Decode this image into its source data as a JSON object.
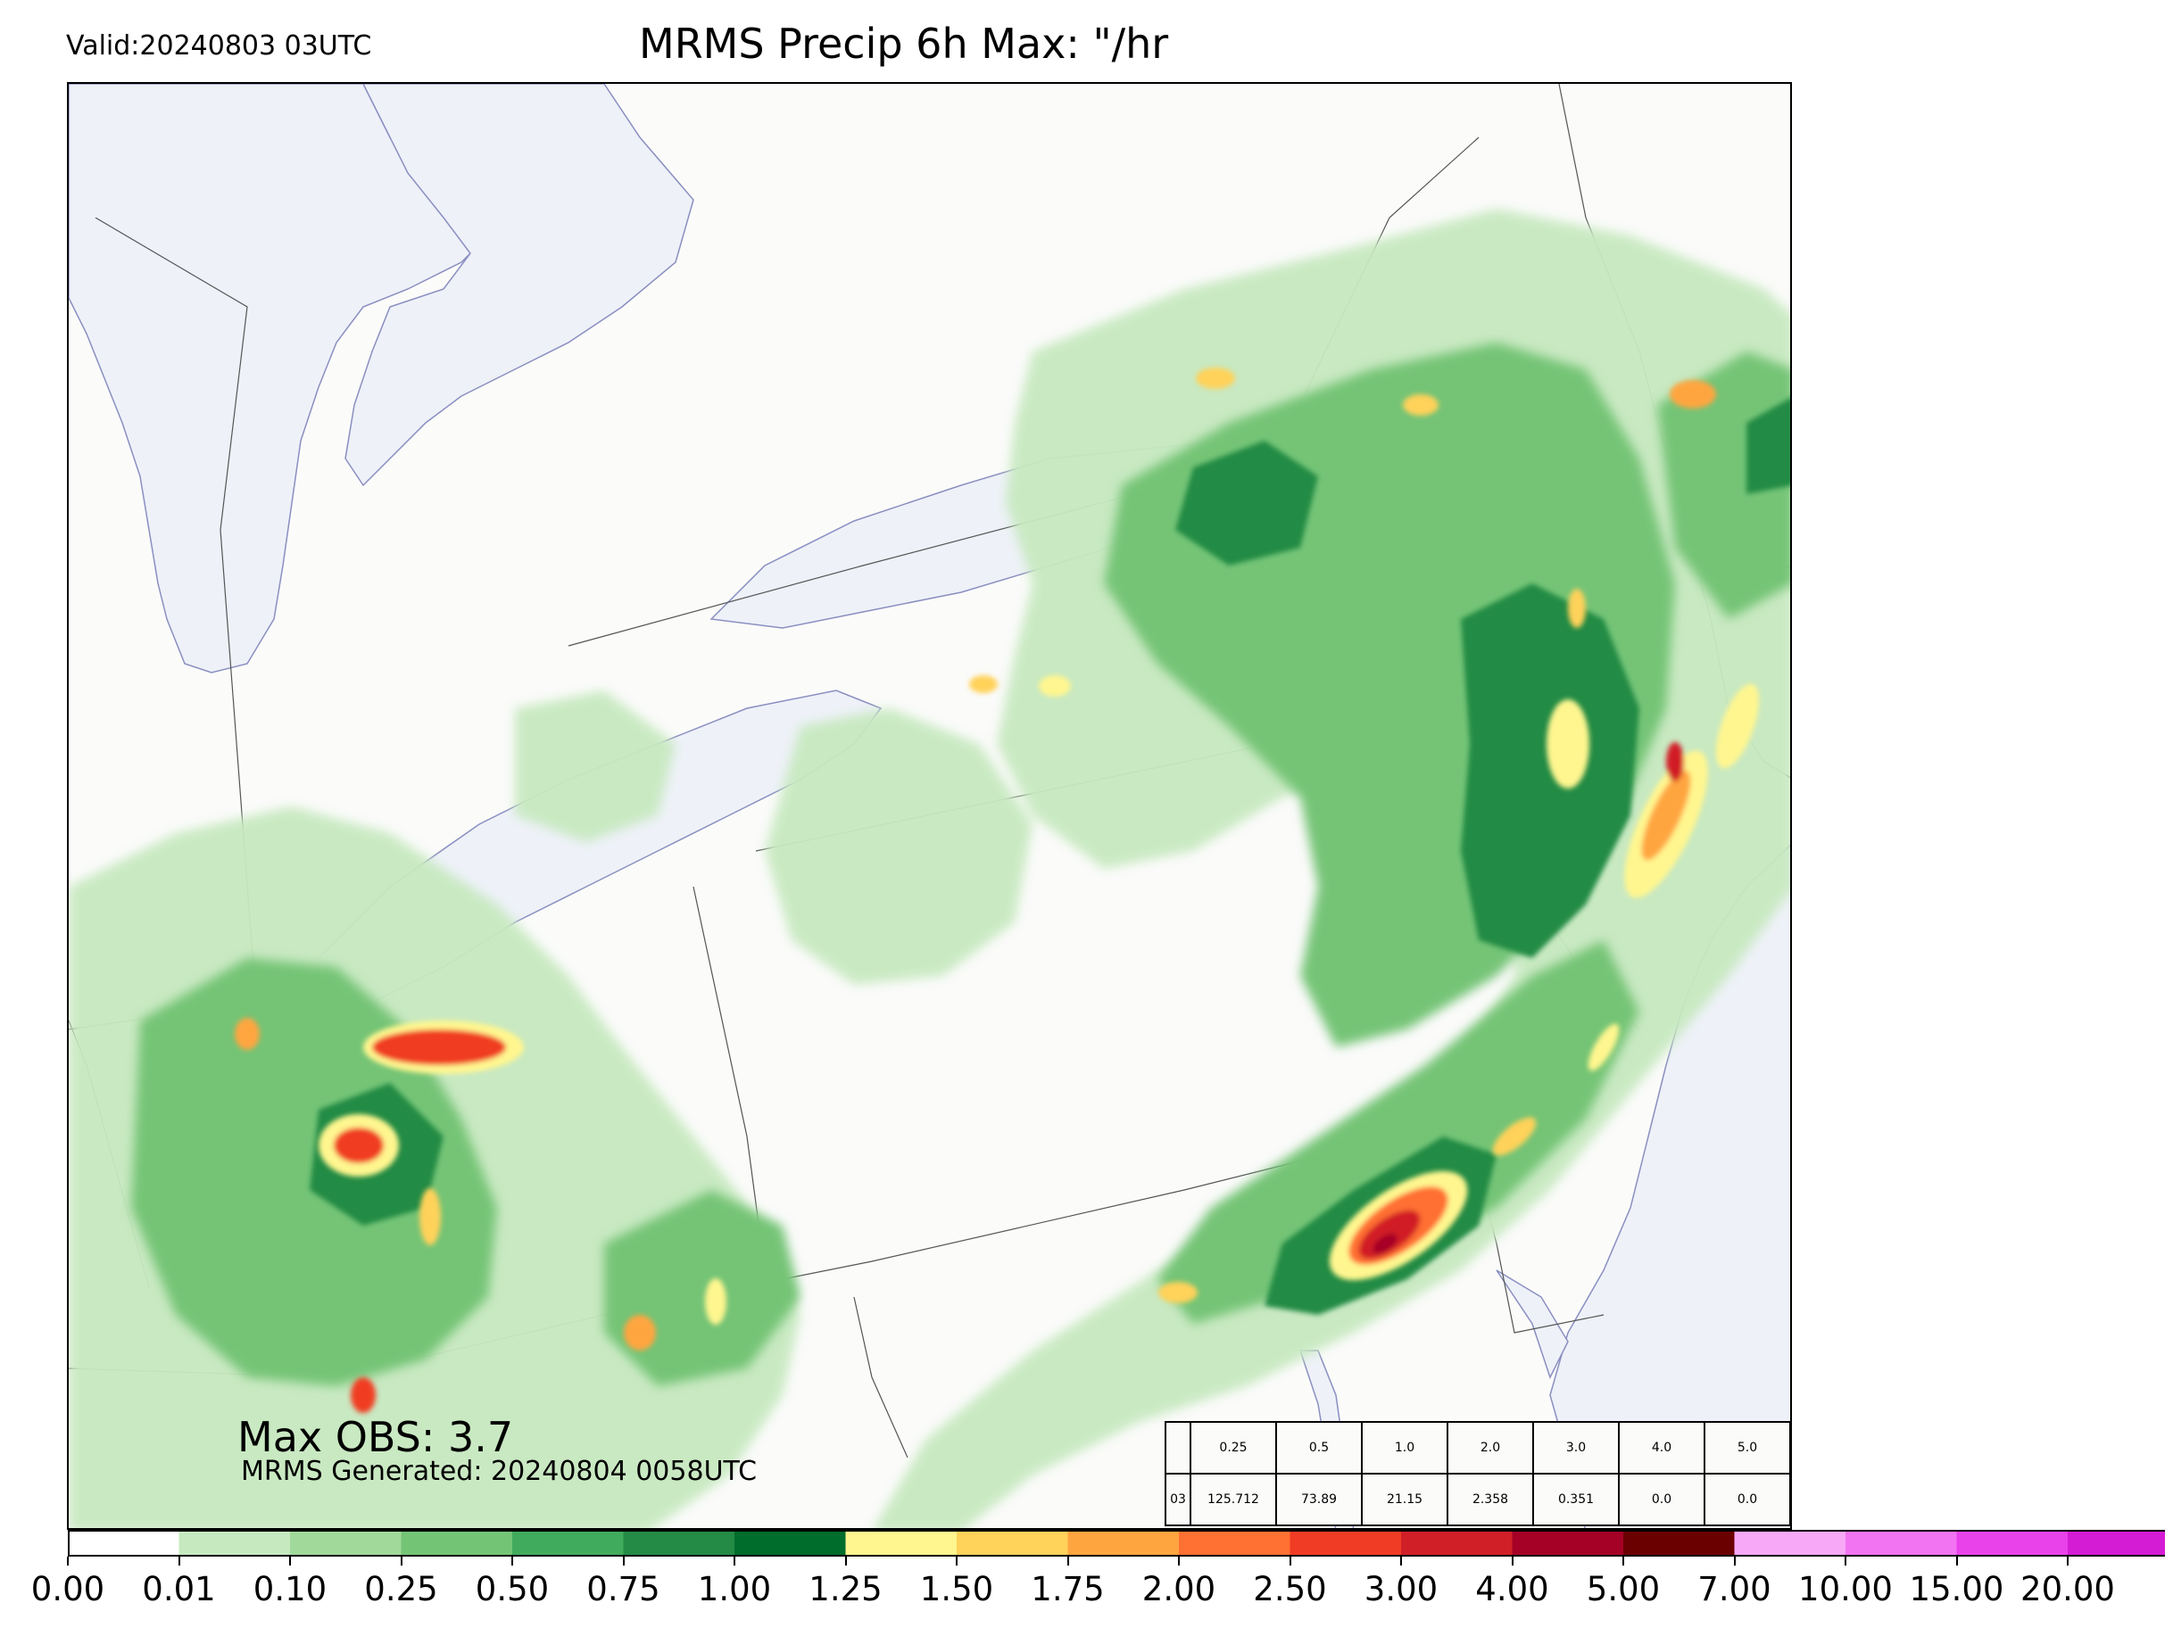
{
  "header": {
    "valid": "Valid:20240803 03UTC",
    "title": "MRMS Precip 6h Max: \"/hr"
  },
  "annotations": {
    "max_obs": "Max OBS: 3.7",
    "generated": "MRMS Generated: 20240804 0058UTC"
  },
  "stats_table": {
    "row_label": "03",
    "thresholds": [
      "0.25",
      "0.5",
      "1.0",
      "2.0",
      "3.0",
      "4.0",
      "5.0"
    ],
    "values": [
      "125.712",
      "73.89",
      "21.15",
      "2.358",
      "0.351",
      "0.0",
      "0.0"
    ]
  },
  "colorbar": {
    "ticks": [
      "0.00",
      "0.01",
      "0.10",
      "0.25",
      "0.50",
      "0.75",
      "1.00",
      "1.25",
      "1.50",
      "1.75",
      "2.00",
      "2.50",
      "3.00",
      "4.00",
      "5.00",
      "7.00",
      "10.00",
      "15.00",
      "20.00"
    ],
    "colors": [
      "#ffffff",
      "#c7e9c0",
      "#a1d99b",
      "#74c476",
      "#41ab5d",
      "#238b45",
      "#006d2c",
      "#fff68f",
      "#ffd25a",
      "#ffa540",
      "#ff7033",
      "#f03c24",
      "#d11f27",
      "#a50026",
      "#6b0000",
      "#f7a8f7",
      "#f274f2",
      "#ea42ea",
      "#d41cd4",
      "#9a0dcf"
    ],
    "extend_color": "#5a008a"
  },
  "map_colors": {
    "water": "#eef1f8",
    "land": "#fbfbfa",
    "coast": "#8a8fc0",
    "border": "#555555"
  }
}
